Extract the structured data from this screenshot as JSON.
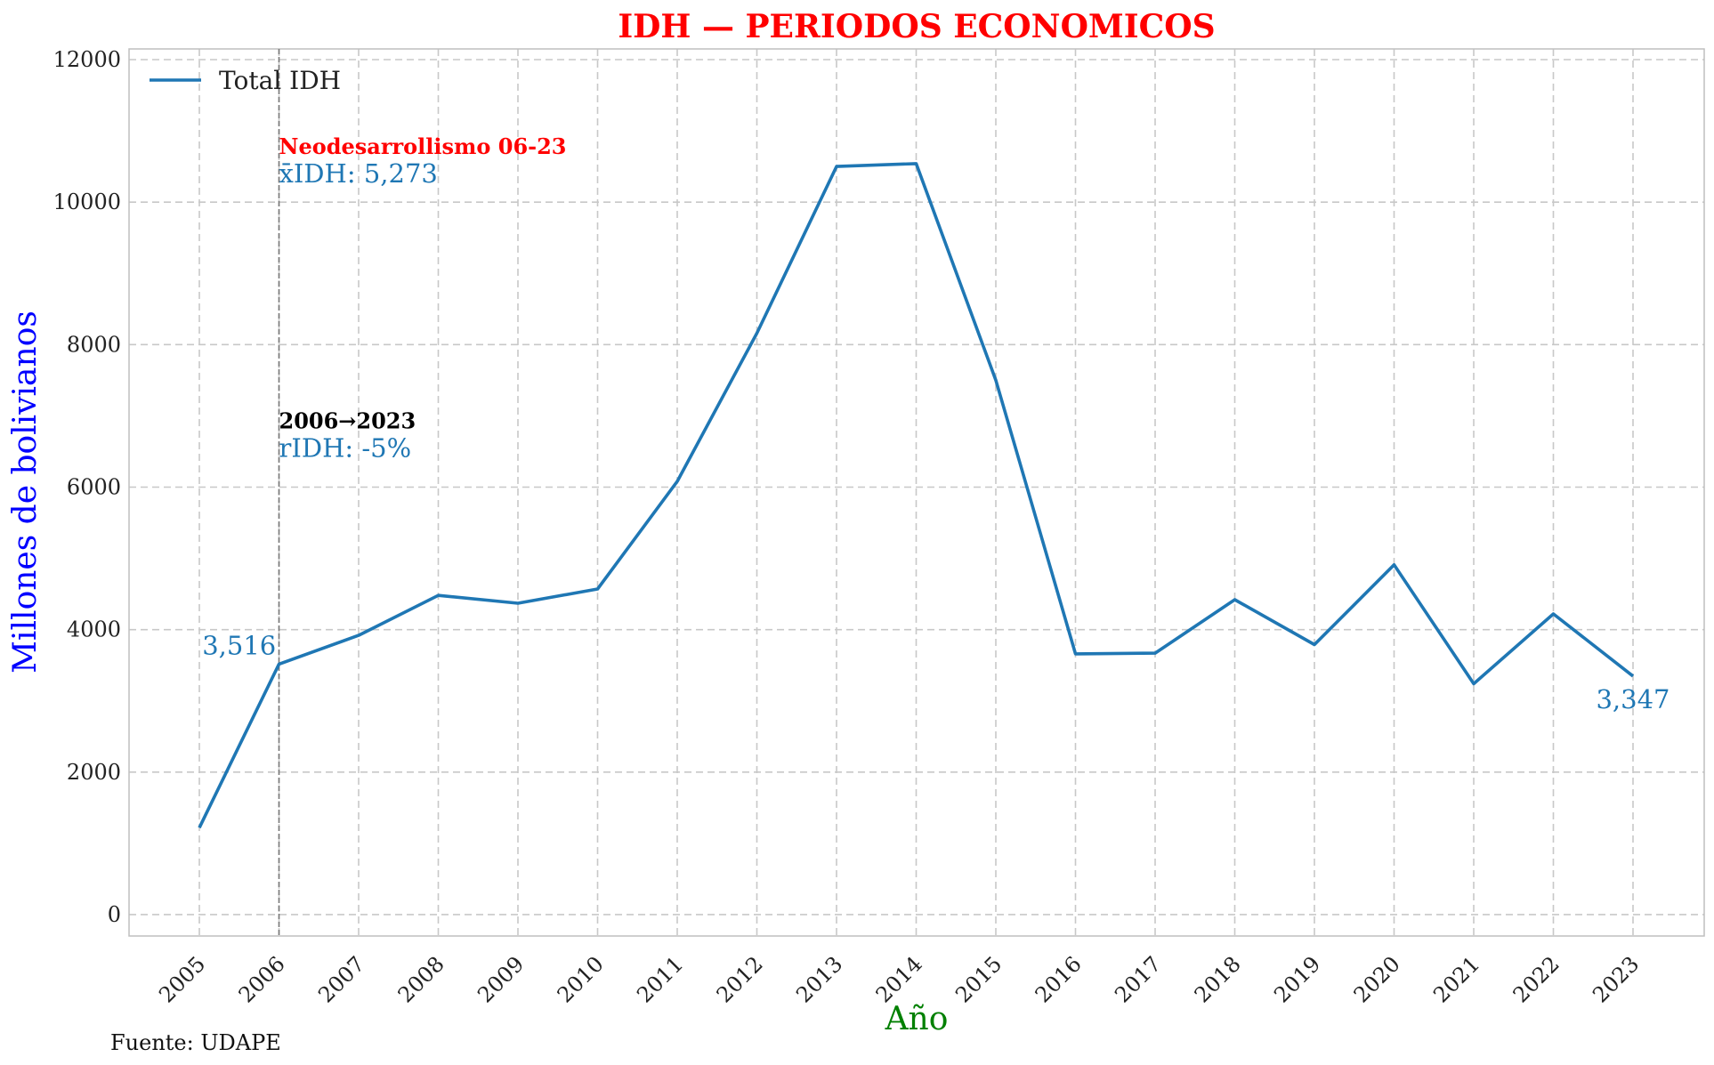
{
  "chart_data": {
    "type": "line",
    "title": "IDH — PERIODOS ECONOMICOS",
    "xlabel": "Año",
    "ylabel": "Millones de bolivianos",
    "source": "Fuente: UDAPE",
    "x": [
      "2005",
      "2006",
      "2007",
      "2008",
      "2009",
      "2010",
      "2011",
      "2012",
      "2013",
      "2014",
      "2015",
      "2016",
      "2017",
      "2018",
      "2019",
      "2020",
      "2021",
      "2022",
      "2023"
    ],
    "series": [
      {
        "name": "Total IDH",
        "color": "#1f77b4",
        "values": [
          1220,
          3516,
          3920,
          4480,
          4370,
          4570,
          6080,
          8160,
          10500,
          10540,
          7500,
          3660,
          3670,
          4420,
          3790,
          4910,
          3240,
          4220,
          3347
        ]
      }
    ],
    "ylim": [
      -300,
      12150
    ],
    "yticks": [
      0,
      2000,
      4000,
      6000,
      8000,
      10000,
      12000
    ],
    "grid": true,
    "legend_position": "top-left",
    "period_marker": {
      "year": "2006",
      "line_style": "dashed",
      "period_label": "Neodesarrollismo 06-23",
      "mean_label": "x̄IDH: 5,273",
      "growth_period_label": "2006→2023",
      "growth_label": "rIDH: -5%"
    },
    "endpoint_labels": {
      "start": "3,516",
      "end": "3,347"
    },
    "colors": {
      "title": "#ff0000",
      "ylabel": "#0000ff",
      "xlabel": "#008000",
      "period_label": "#ff0000",
      "series": "#1f77b4",
      "marker_line": "#777777"
    }
  }
}
